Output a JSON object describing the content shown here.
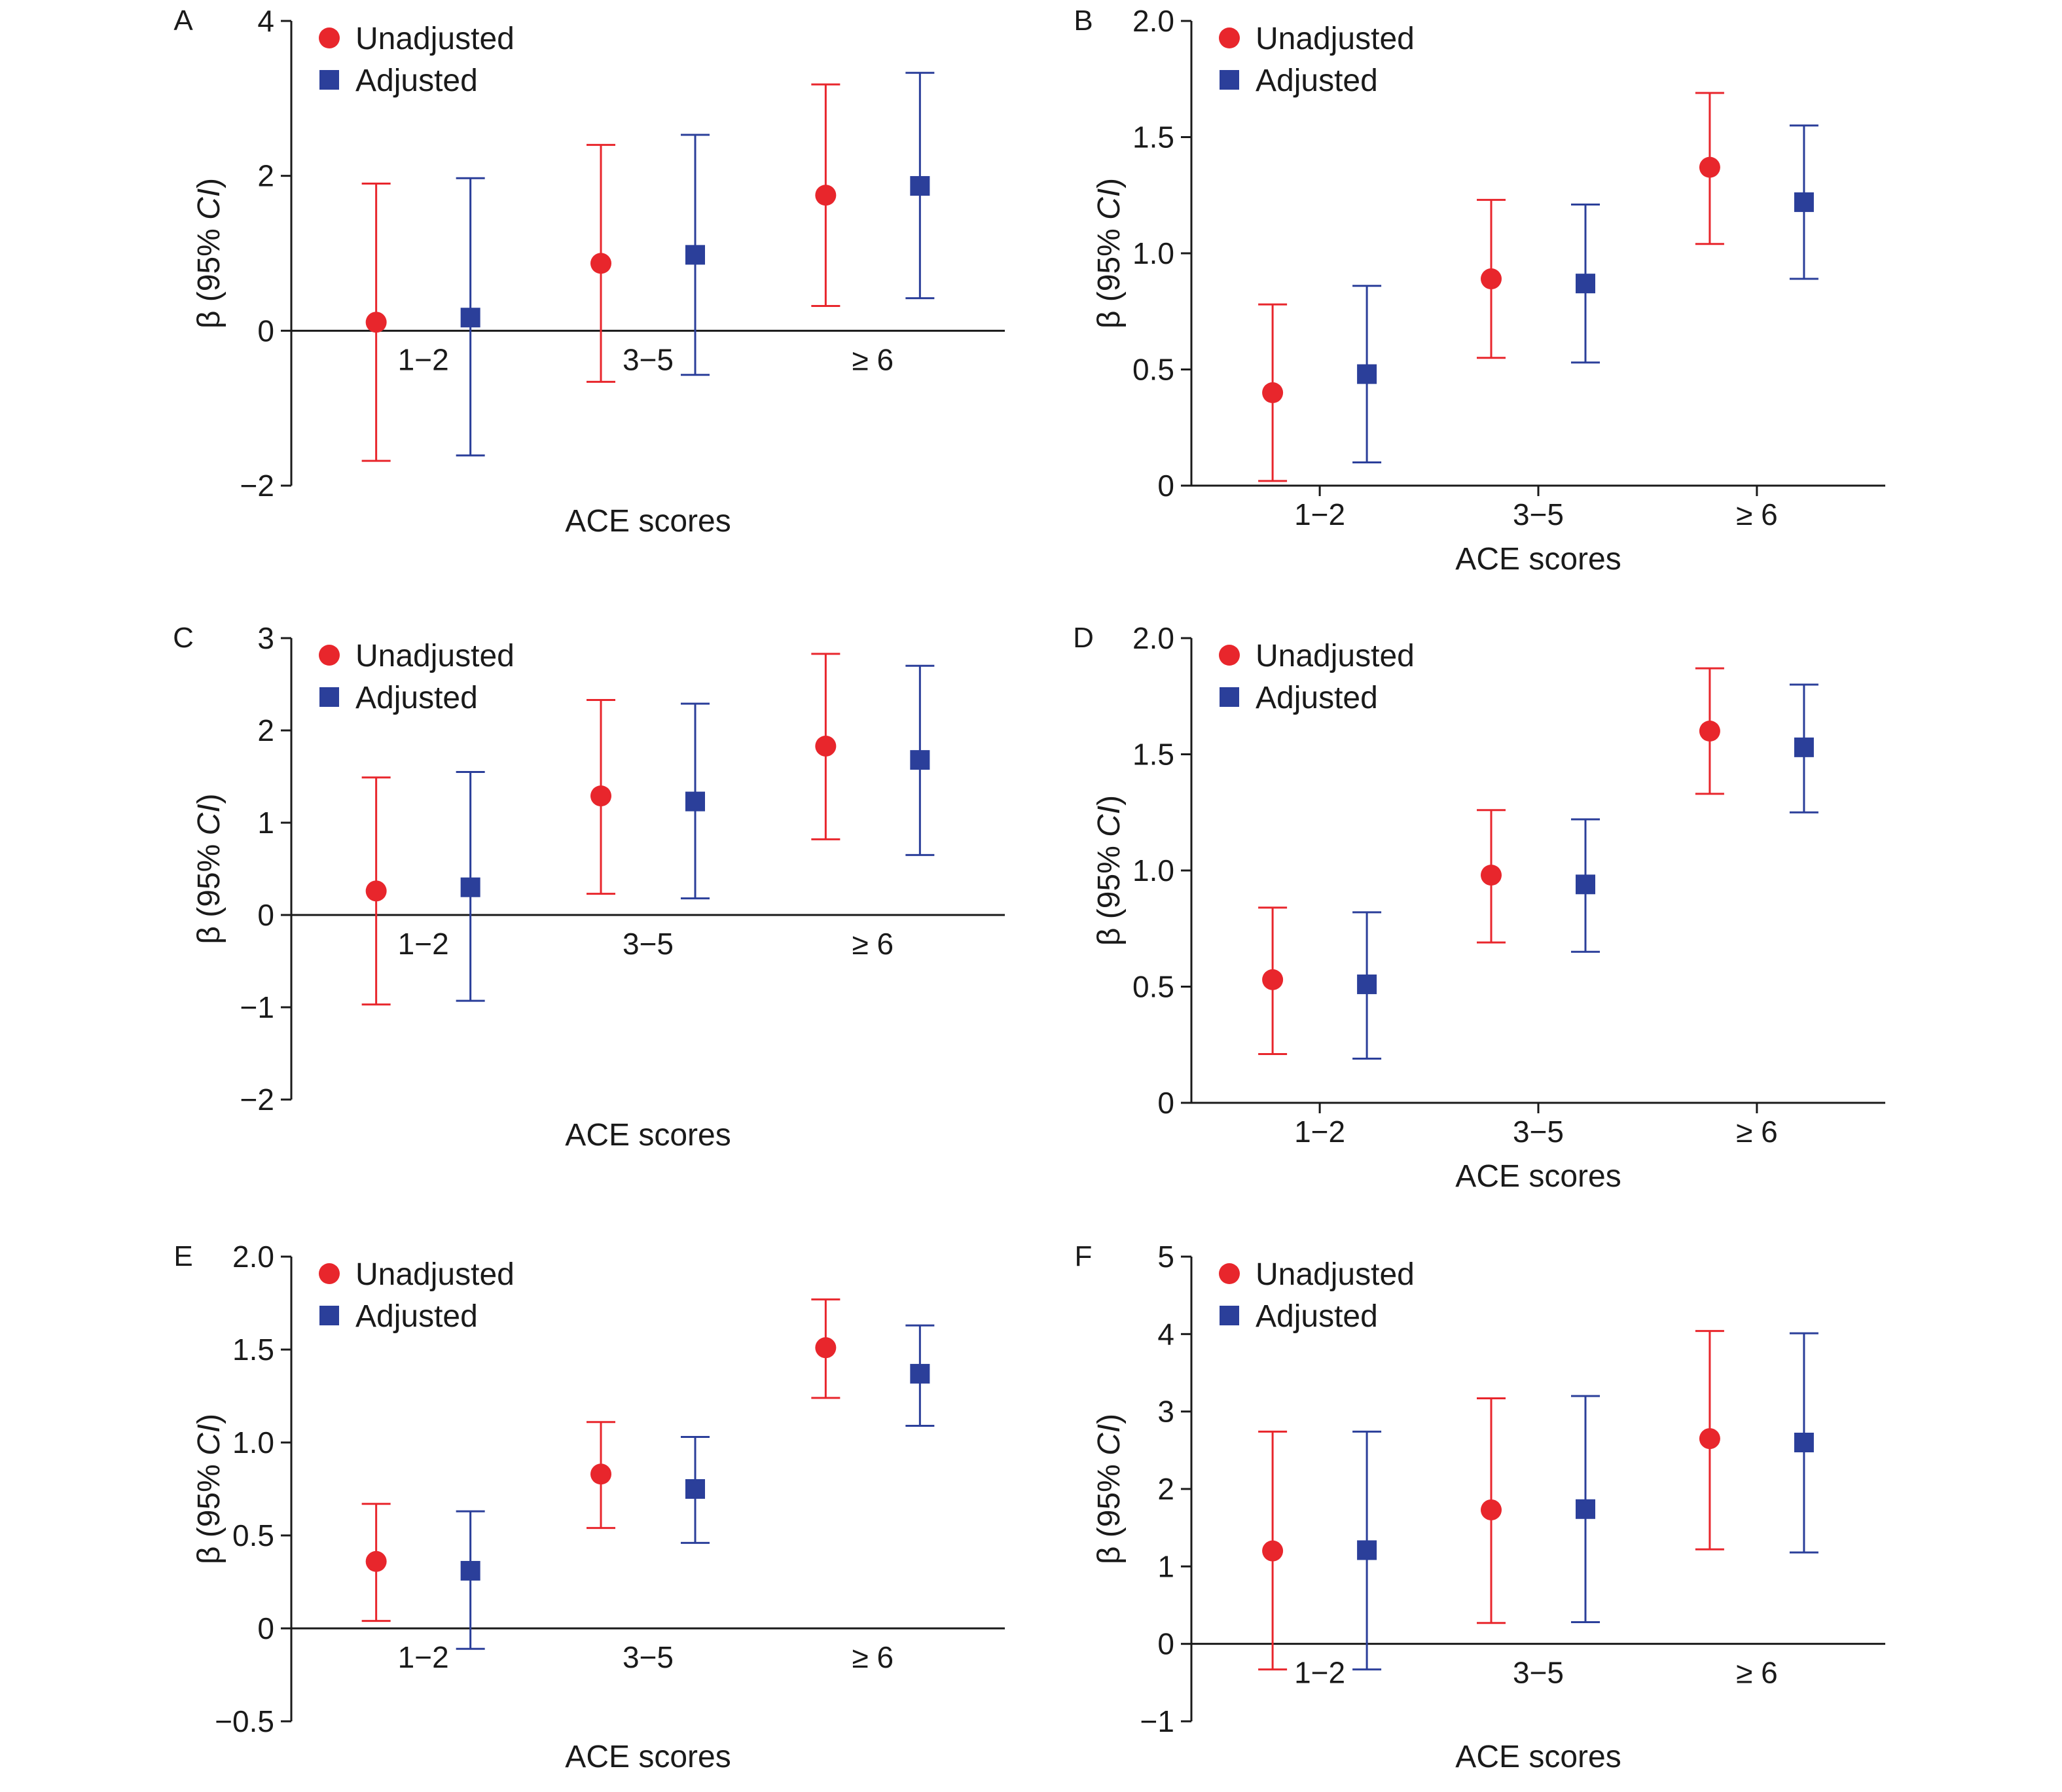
{
  "chart_data": [
    {
      "panel": "A",
      "type": "scatter",
      "categories": [
        "1−2",
        "3−5",
        "≥ 6"
      ],
      "xlabel": "ACE  scores",
      "ylabel_parts": [
        "β (95% ",
        "CI",
        ")"
      ],
      "ylim": [
        -2,
        4
      ],
      "yticks": [
        -2,
        0,
        2,
        4
      ],
      "ytick_labels": [
        "−2",
        "0",
        "2",
        "4"
      ],
      "legend_position": "top-left",
      "series": [
        {
          "name": "Unadjusted",
          "marker": "circle",
          "color": "#e8262c",
          "values": [
            0.11,
            0.87,
            1.75
          ],
          "lower": [
            -1.68,
            -0.66,
            0.32
          ],
          "upper": [
            1.9,
            2.4,
            3.18
          ]
        },
        {
          "name": "Adjusted",
          "marker": "square",
          "color": "#2b3f9a",
          "values": [
            0.17,
            0.98,
            1.87
          ],
          "lower": [
            -1.61,
            -0.57,
            0.42
          ],
          "upper": [
            1.97,
            2.53,
            3.33
          ]
        }
      ]
    },
    {
      "panel": "B",
      "type": "scatter",
      "categories": [
        "1−2",
        "3−5",
        "≥ 6"
      ],
      "xlabel": "ACE  scores",
      "ylabel_parts": [
        "β (95% ",
        "CI",
        ")"
      ],
      "ylim": [
        0,
        2.0
      ],
      "yticks": [
        0,
        0.5,
        1.0,
        1.5,
        2.0
      ],
      "ytick_labels": [
        "0",
        "0.5",
        "1.0",
        "1.5",
        "2.0"
      ],
      "legend_position": "top-left",
      "series": [
        {
          "name": "Unadjusted",
          "marker": "circle",
          "color": "#e8262c",
          "values": [
            0.4,
            0.89,
            1.37
          ],
          "lower": [
            0.02,
            0.55,
            1.04
          ],
          "upper": [
            0.78,
            1.23,
            1.69
          ]
        },
        {
          "name": "Adjusted",
          "marker": "square",
          "color": "#2b3f9a",
          "values": [
            0.48,
            0.87,
            1.22
          ],
          "lower": [
            0.1,
            0.53,
            0.89
          ],
          "upper": [
            0.86,
            1.21,
            1.55
          ]
        }
      ]
    },
    {
      "panel": "C",
      "type": "scatter",
      "categories": [
        "1−2",
        "3−5",
        "≥ 6"
      ],
      "xlabel": "ACE  scores",
      "ylabel_parts": [
        "β (95% ",
        "CI",
        ")"
      ],
      "ylim": [
        -2,
        3
      ],
      "yticks": [
        -2,
        -1,
        0,
        1,
        2,
        3
      ],
      "ytick_labels": [
        "−2",
        "−1",
        "0",
        "1",
        "2",
        "3"
      ],
      "legend_position": "top-left",
      "series": [
        {
          "name": "Unadjusted",
          "marker": "circle",
          "color": "#e8262c",
          "values": [
            0.26,
            1.29,
            1.83
          ],
          "lower": [
            -0.97,
            0.23,
            0.82
          ],
          "upper": [
            1.49,
            2.33,
            2.83
          ]
        },
        {
          "name": "Adjusted",
          "marker": "square",
          "color": "#2b3f9a",
          "values": [
            0.3,
            1.23,
            1.68
          ],
          "lower": [
            -0.93,
            0.18,
            0.65
          ],
          "upper": [
            1.55,
            2.29,
            2.7
          ]
        }
      ]
    },
    {
      "panel": "D",
      "type": "scatter",
      "categories": [
        "1−2",
        "3−5",
        "≥ 6"
      ],
      "xlabel": "ACE  scores",
      "ylabel_parts": [
        "β (95% ",
        "CI",
        ")"
      ],
      "ylim": [
        0,
        2.0
      ],
      "yticks": [
        0,
        0.5,
        1.0,
        1.5,
        2.0
      ],
      "ytick_labels": [
        "0",
        "0.5",
        "1.0",
        "1.5",
        "2.0"
      ],
      "legend_position": "top-left",
      "series": [
        {
          "name": "Unadjusted",
          "marker": "circle",
          "color": "#e8262c",
          "values": [
            0.53,
            0.98,
            1.6
          ],
          "lower": [
            0.21,
            0.69,
            1.33
          ],
          "upper": [
            0.84,
            1.26,
            1.87
          ]
        },
        {
          "name": "Adjusted",
          "marker": "square",
          "color": "#2b3f9a",
          "values": [
            0.51,
            0.94,
            1.53
          ],
          "lower": [
            0.19,
            0.65,
            1.25
          ],
          "upper": [
            0.82,
            1.22,
            1.8
          ]
        }
      ]
    },
    {
      "panel": "E",
      "type": "scatter",
      "categories": [
        "1−2",
        "3−5",
        "≥ 6"
      ],
      "xlabel": "ACE  scores",
      "ylabel_parts": [
        "β (95% ",
        "CI",
        ")"
      ],
      "ylim": [
        -0.5,
        2.0
      ],
      "yticks": [
        -0.5,
        0,
        0.5,
        1.0,
        1.5,
        2.0
      ],
      "ytick_labels": [
        "−0.5",
        "0",
        "0.5",
        "1.0",
        "1.5",
        "2.0"
      ],
      "legend_position": "top-left",
      "series": [
        {
          "name": "Unadjusted",
          "marker": "circle",
          "color": "#e8262c",
          "values": [
            0.36,
            0.83,
            1.51
          ],
          "lower": [
            0.04,
            0.54,
            1.24
          ],
          "upper": [
            0.67,
            1.11,
            1.77
          ]
        },
        {
          "name": "Adjusted",
          "marker": "square",
          "color": "#2b3f9a",
          "values": [
            0.31,
            0.75,
            1.37
          ],
          "lower": [
            -0.11,
            0.46,
            1.09
          ],
          "upper": [
            0.63,
            1.03,
            1.63
          ]
        }
      ]
    },
    {
      "panel": "F",
      "type": "scatter",
      "categories": [
        "1−2",
        "3−5",
        "≥ 6"
      ],
      "xlabel": "ACE  scores",
      "ylabel_parts": [
        "β (95% ",
        "CI",
        ")"
      ],
      "ylim": [
        -1,
        5
      ],
      "yticks": [
        -1,
        0,
        1,
        2,
        3,
        4,
        5
      ],
      "ytick_labels": [
        "−1",
        "0",
        "1",
        "2",
        "3",
        "4",
        "5"
      ],
      "legend_position": "top-left",
      "series": [
        {
          "name": "Unadjusted",
          "marker": "circle",
          "color": "#e8262c",
          "values": [
            1.2,
            1.73,
            2.65
          ],
          "lower": [
            -0.33,
            0.27,
            1.22
          ],
          "upper": [
            2.74,
            3.17,
            4.04
          ]
        },
        {
          "name": "Adjusted",
          "marker": "square",
          "color": "#2b3f9a",
          "values": [
            1.21,
            1.74,
            2.6
          ],
          "lower": [
            -0.33,
            0.28,
            1.18
          ],
          "upper": [
            2.74,
            3.2,
            4.01
          ]
        }
      ]
    }
  ]
}
